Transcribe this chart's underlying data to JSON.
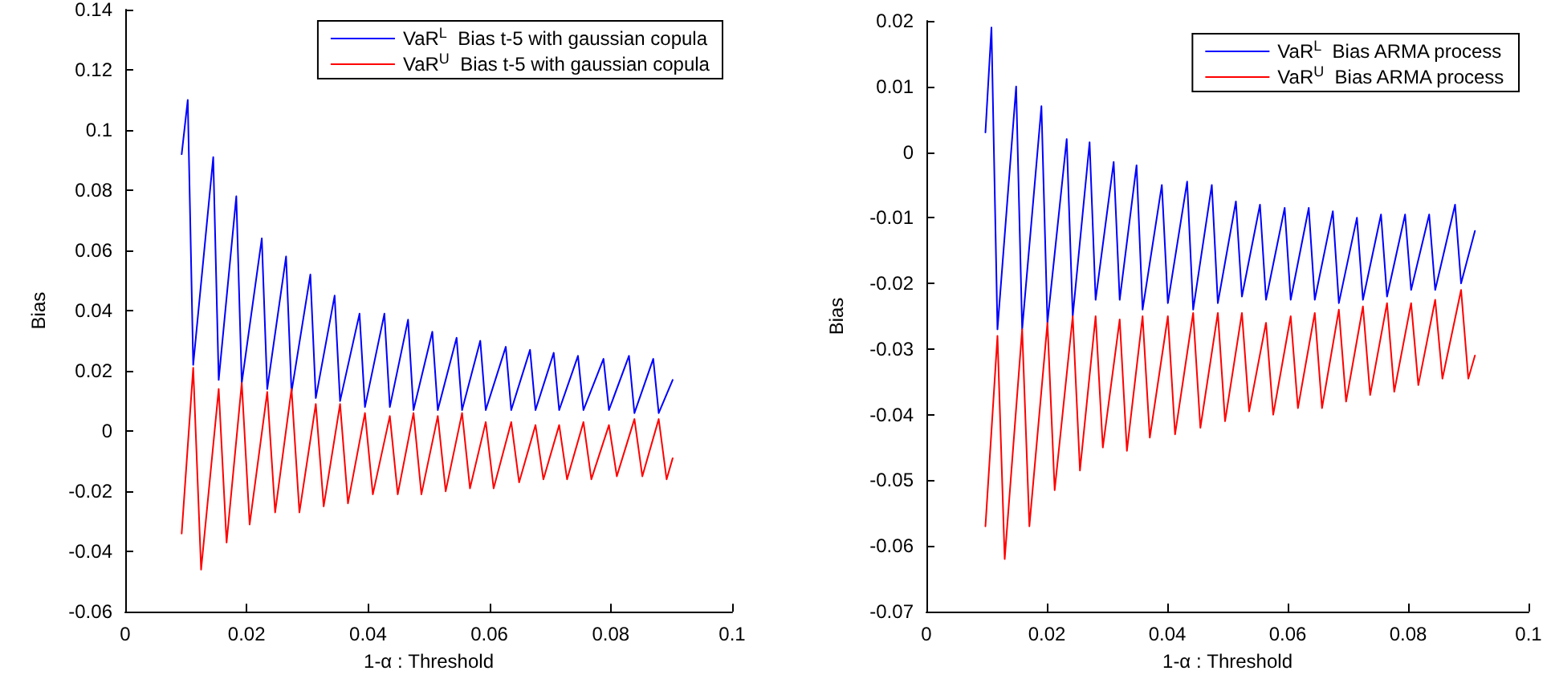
{
  "chart_data": [
    {
      "type": "line",
      "xlabel": "1-α : Threshold",
      "ylabel": "Bias",
      "xlim": [
        0,
        0.1
      ],
      "xticks": [
        0,
        0.02,
        0.04,
        0.06,
        0.08,
        0.1
      ],
      "ylim": [
        -0.06,
        0.14
      ],
      "yticks": [
        -0.06,
        -0.04,
        -0.02,
        0,
        0.02,
        0.04,
        0.06,
        0.08,
        0.1,
        0.12,
        0.14
      ],
      "legend": "top right",
      "grid": false,
      "series": [
        {
          "name": "VaR$^{L}$  Bias t-5 with gaussian copula",
          "color": "#0000ff",
          "x": [
            0.0093,
            0.0103,
            0.0112,
            0.0145,
            0.0154,
            0.0183,
            0.0192,
            0.0225,
            0.0234,
            0.0265,
            0.0274,
            0.0305,
            0.0314,
            0.0345,
            0.0354,
            0.0386,
            0.0395,
            0.0427,
            0.0436,
            0.0466,
            0.0475,
            0.0506,
            0.0515,
            0.0546,
            0.0555,
            0.0585,
            0.0594,
            0.0627,
            0.0636,
            0.0667,
            0.0676,
            0.0706,
            0.0715,
            0.0746,
            0.0755,
            0.0788,
            0.0797,
            0.083,
            0.0839,
            0.087,
            0.0879,
            0.0902
          ],
          "values": [
            0.092,
            0.11,
            0.022,
            0.091,
            0.017,
            0.078,
            0.016,
            0.064,
            0.014,
            0.058,
            0.013,
            0.052,
            0.011,
            0.045,
            0.01,
            0.039,
            0.008,
            0.039,
            0.008,
            0.037,
            0.007,
            0.033,
            0.007,
            0.031,
            0.007,
            0.03,
            0.007,
            0.028,
            0.007,
            0.027,
            0.007,
            0.026,
            0.007,
            0.025,
            0.007,
            0.024,
            0.007,
            0.025,
            0.006,
            0.024,
            0.006,
            0.017
          ]
        },
        {
          "name": "VaR$^{U}$  Bias t-5 with gaussian copula",
          "color": "#ff0000",
          "x": [
            0.0093,
            0.0112,
            0.0125,
            0.0154,
            0.0167,
            0.0192,
            0.0205,
            0.0234,
            0.0247,
            0.0274,
            0.0287,
            0.0314,
            0.0327,
            0.0354,
            0.0367,
            0.0395,
            0.0408,
            0.0436,
            0.0449,
            0.0475,
            0.0488,
            0.0515,
            0.0528,
            0.0555,
            0.0568,
            0.0594,
            0.0607,
            0.0636,
            0.0649,
            0.0676,
            0.0689,
            0.0715,
            0.0728,
            0.0755,
            0.0768,
            0.0797,
            0.081,
            0.0839,
            0.0852,
            0.0879,
            0.0892,
            0.0902
          ],
          "values": [
            -0.034,
            0.021,
            -0.046,
            0.014,
            -0.037,
            0.016,
            -0.031,
            0.013,
            -0.027,
            0.014,
            -0.027,
            0.009,
            -0.025,
            0.009,
            -0.024,
            0.006,
            -0.021,
            0.005,
            -0.021,
            0.006,
            -0.021,
            0.005,
            -0.02,
            0.006,
            -0.019,
            0.003,
            -0.019,
            0.003,
            -0.017,
            0.002,
            -0.016,
            0.002,
            -0.016,
            0.003,
            -0.016,
            0.002,
            -0.015,
            0.004,
            -0.015,
            0.004,
            -0.016,
            -0.009
          ]
        }
      ]
    },
    {
      "type": "line",
      "xlabel": "1-α : Threshold",
      "ylabel": "Bias",
      "xlim": [
        0,
        0.1
      ],
      "xticks": [
        0,
        0.02,
        0.04,
        0.06,
        0.08,
        0.1
      ],
      "ylim": [
        -0.07,
        0.02
      ],
      "yticks": [
        -0.07,
        -0.06,
        -0.05,
        -0.04,
        -0.03,
        -0.02,
        -0.01,
        0,
        0.01,
        0.02
      ],
      "legend": "top right",
      "grid": false,
      "series": [
        {
          "name": "VaR$^{L}$  Bias ARMA process",
          "color": "#0000ff",
          "x": [
            0.0098,
            0.0108,
            0.0118,
            0.0149,
            0.0159,
            0.0191,
            0.0201,
            0.0233,
            0.0243,
            0.0271,
            0.0281,
            0.0311,
            0.0321,
            0.0349,
            0.0359,
            0.0391,
            0.0401,
            0.0433,
            0.0443,
            0.0474,
            0.0484,
            0.0514,
            0.0524,
            0.0554,
            0.0564,
            0.0595,
            0.0605,
            0.0635,
            0.0645,
            0.0675,
            0.0685,
            0.0715,
            0.0725,
            0.0755,
            0.0765,
            0.0795,
            0.0805,
            0.0835,
            0.0845,
            0.0878,
            0.0888,
            0.0911
          ],
          "values": [
            0.003,
            0.019,
            -0.027,
            0.01,
            -0.027,
            0.007,
            -0.026,
            0.002,
            -0.025,
            0.0015,
            -0.0225,
            -0.0015,
            -0.0225,
            -0.002,
            -0.024,
            -0.005,
            -0.023,
            -0.0045,
            -0.024,
            -0.005,
            -0.023,
            -0.0075,
            -0.022,
            -0.008,
            -0.0225,
            -0.0085,
            -0.0225,
            -0.0085,
            -0.0225,
            -0.009,
            -0.023,
            -0.01,
            -0.0225,
            -0.0095,
            -0.022,
            -0.0095,
            -0.021,
            -0.0095,
            -0.021,
            -0.008,
            -0.02,
            -0.012
          ]
        },
        {
          "name": "VaR$^{U}$  Bias ARMA process",
          "color": "#ff0000",
          "x": [
            0.0098,
            0.0118,
            0.013,
            0.0159,
            0.0171,
            0.0201,
            0.0213,
            0.0243,
            0.0255,
            0.0281,
            0.0293,
            0.0321,
            0.0333,
            0.0359,
            0.0371,
            0.0401,
            0.0413,
            0.0443,
            0.0455,
            0.0484,
            0.0496,
            0.0524,
            0.0536,
            0.0564,
            0.0576,
            0.0605,
            0.0617,
            0.0645,
            0.0657,
            0.0685,
            0.0697,
            0.0725,
            0.0737,
            0.0765,
            0.0777,
            0.0805,
            0.0817,
            0.0845,
            0.0857,
            0.0888,
            0.09,
            0.0911
          ],
          "values": [
            -0.057,
            -0.028,
            -0.062,
            -0.027,
            -0.057,
            -0.026,
            -0.0515,
            -0.025,
            -0.0485,
            -0.025,
            -0.045,
            -0.0255,
            -0.0455,
            -0.025,
            -0.0435,
            -0.025,
            -0.043,
            -0.0245,
            -0.042,
            -0.0245,
            -0.041,
            -0.0245,
            -0.0395,
            -0.026,
            -0.04,
            -0.025,
            -0.039,
            -0.0245,
            -0.039,
            -0.024,
            -0.038,
            -0.0235,
            -0.037,
            -0.023,
            -0.0365,
            -0.023,
            -0.0355,
            -0.0225,
            -0.0345,
            -0.021,
            -0.0345,
            -0.031
          ]
        }
      ]
    }
  ]
}
